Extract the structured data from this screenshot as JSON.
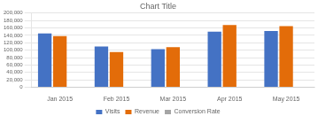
{
  "chart_data": {
    "type": "bar",
    "title": "Chart Title",
    "categories": [
      "Jan 2015",
      "Feb 2015",
      "Mar 2015",
      "Apr 2015",
      "May 2015"
    ],
    "series": [
      {
        "name": "Visits",
        "color": "#4472c4",
        "values": [
          145000,
          110000,
          103000,
          150000,
          152000
        ]
      },
      {
        "name": "Revenue",
        "color": "#e36c09",
        "values": [
          138000,
          95000,
          108000,
          168000,
          165000
        ]
      },
      {
        "name": "Conversion Rate",
        "color": "#a5a5a5",
        "values": [
          0,
          0,
          0,
          0,
          0
        ]
      }
    ],
    "ylim": [
      0,
      200000
    ],
    "yticks": [
      0,
      {
        "value": 20000,
        "label": "20,000"
      },
      {
        "value": 40000,
        "label": "40,000"
      },
      {
        "value": 60000,
        "label": "60,000"
      },
      {
        "value": 80000,
        "label": "80,000"
      },
      {
        "value": 100000,
        "label": "100,000"
      },
      {
        "value": 120000,
        "label": "120,000"
      },
      {
        "value": 140000,
        "label": "140,000"
      },
      {
        "value": 160000,
        "label": "160,000"
      },
      {
        "value": 180000,
        "label": "180,000"
      },
      {
        "value": 200000,
        "label": "200,000"
      }
    ],
    "grid": true,
    "legend": "bottom"
  }
}
